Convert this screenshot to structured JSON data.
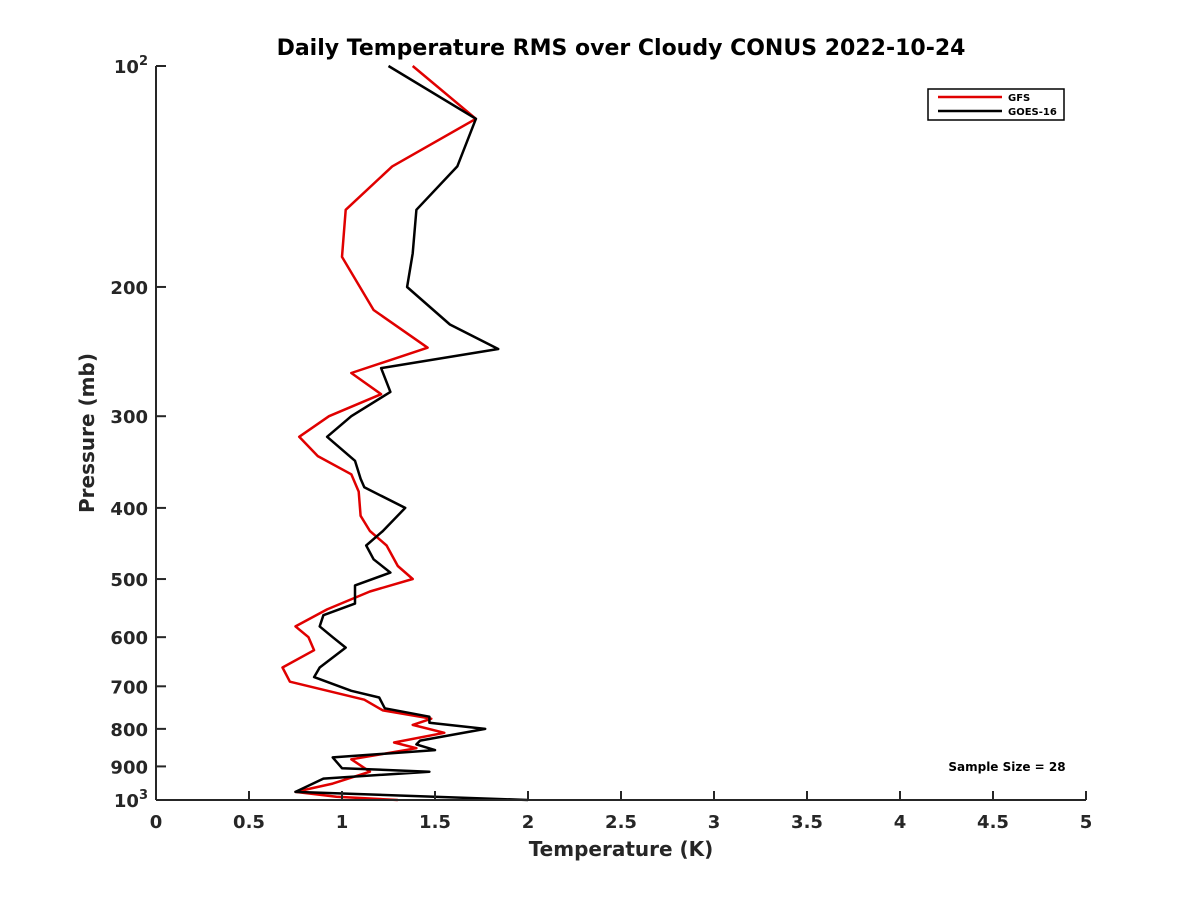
{
  "chart_data": {
    "type": "line",
    "title": "Daily Temperature RMS over Cloudy CONUS 2022-10-24",
    "xlabel": "Temperature (K)",
    "ylabel": "Pressure (mb)",
    "xlim": [
      0,
      5
    ],
    "ylim": [
      100,
      1000
    ],
    "y_scale": "log",
    "y_reversed": true,
    "grid": false,
    "legend_position": "top-right",
    "x_ticks": [
      "0",
      "0.5",
      "1",
      "1.5",
      "2",
      "2.5",
      "3",
      "3.5",
      "4",
      "4.5",
      "5"
    ],
    "y_ticks": [
      {
        "value": 100,
        "base": "10",
        "exp": "2"
      },
      {
        "value": 200,
        "label": "200"
      },
      {
        "value": 300,
        "label": "300"
      },
      {
        "value": 400,
        "label": "400"
      },
      {
        "value": 500,
        "label": "500"
      },
      {
        "value": 600,
        "label": "600"
      },
      {
        "value": 700,
        "label": "700"
      },
      {
        "value": 800,
        "label": "800"
      },
      {
        "value": 900,
        "label": "900"
      },
      {
        "value": 1000,
        "base": "10",
        "exp": "3"
      }
    ],
    "annotation": "Sample Size = 28",
    "series": [
      {
        "name": "GFS",
        "color": "#e00000",
        "points": [
          [
            1.38,
            100
          ],
          [
            1.72,
            118
          ],
          [
            1.27,
            137
          ],
          [
            1.02,
            157
          ],
          [
            1.0,
            182
          ],
          [
            1.17,
            215
          ],
          [
            1.46,
            242
          ],
          [
            1.05,
            262
          ],
          [
            1.21,
            280
          ],
          [
            0.93,
            300
          ],
          [
            0.77,
            320
          ],
          [
            0.87,
            340
          ],
          [
            1.05,
            360
          ],
          [
            1.09,
            380
          ],
          [
            1.1,
            410
          ],
          [
            1.15,
            430
          ],
          [
            1.24,
            450
          ],
          [
            1.3,
            480
          ],
          [
            1.38,
            500
          ],
          [
            1.15,
            520
          ],
          [
            0.92,
            550
          ],
          [
            0.75,
            580
          ],
          [
            0.82,
            600
          ],
          [
            0.85,
            625
          ],
          [
            0.68,
            660
          ],
          [
            0.72,
            690
          ],
          [
            1.12,
            730
          ],
          [
            1.22,
            755
          ],
          [
            1.48,
            775
          ],
          [
            1.38,
            790
          ],
          [
            1.55,
            810
          ],
          [
            1.28,
            835
          ],
          [
            1.4,
            850
          ],
          [
            1.05,
            880
          ],
          [
            1.15,
            915
          ],
          [
            0.95,
            950
          ],
          [
            0.75,
            975
          ],
          [
            0.97,
            990
          ],
          [
            1.3,
            1000
          ]
        ]
      },
      {
        "name": "GOES-16",
        "color": "#000000",
        "points": [
          [
            1.25,
            100
          ],
          [
            1.72,
            118
          ],
          [
            1.62,
            137
          ],
          [
            1.4,
            157
          ],
          [
            1.38,
            180
          ],
          [
            1.35,
            200
          ],
          [
            1.58,
            225
          ],
          [
            1.84,
            243
          ],
          [
            1.21,
            258
          ],
          [
            1.26,
            278
          ],
          [
            1.05,
            300
          ],
          [
            0.92,
            320
          ],
          [
            1.07,
            345
          ],
          [
            1.1,
            365
          ],
          [
            1.12,
            375
          ],
          [
            1.34,
            400
          ],
          [
            1.22,
            430
          ],
          [
            1.13,
            450
          ],
          [
            1.17,
            470
          ],
          [
            1.26,
            490
          ],
          [
            1.07,
            510
          ],
          [
            1.07,
            540
          ],
          [
            0.9,
            560
          ],
          [
            0.88,
            580
          ],
          [
            0.95,
            600
          ],
          [
            1.02,
            620
          ],
          [
            0.88,
            660
          ],
          [
            0.85,
            680
          ],
          [
            1.05,
            710
          ],
          [
            1.2,
            725
          ],
          [
            1.23,
            750
          ],
          [
            1.47,
            770
          ],
          [
            1.47,
            785
          ],
          [
            1.77,
            800
          ],
          [
            1.42,
            830
          ],
          [
            1.4,
            840
          ],
          [
            1.5,
            855
          ],
          [
            0.95,
            875
          ],
          [
            1.0,
            905
          ],
          [
            1.47,
            915
          ],
          [
            0.9,
            935
          ],
          [
            0.75,
            975
          ],
          [
            2.0,
            1000
          ]
        ]
      }
    ]
  }
}
